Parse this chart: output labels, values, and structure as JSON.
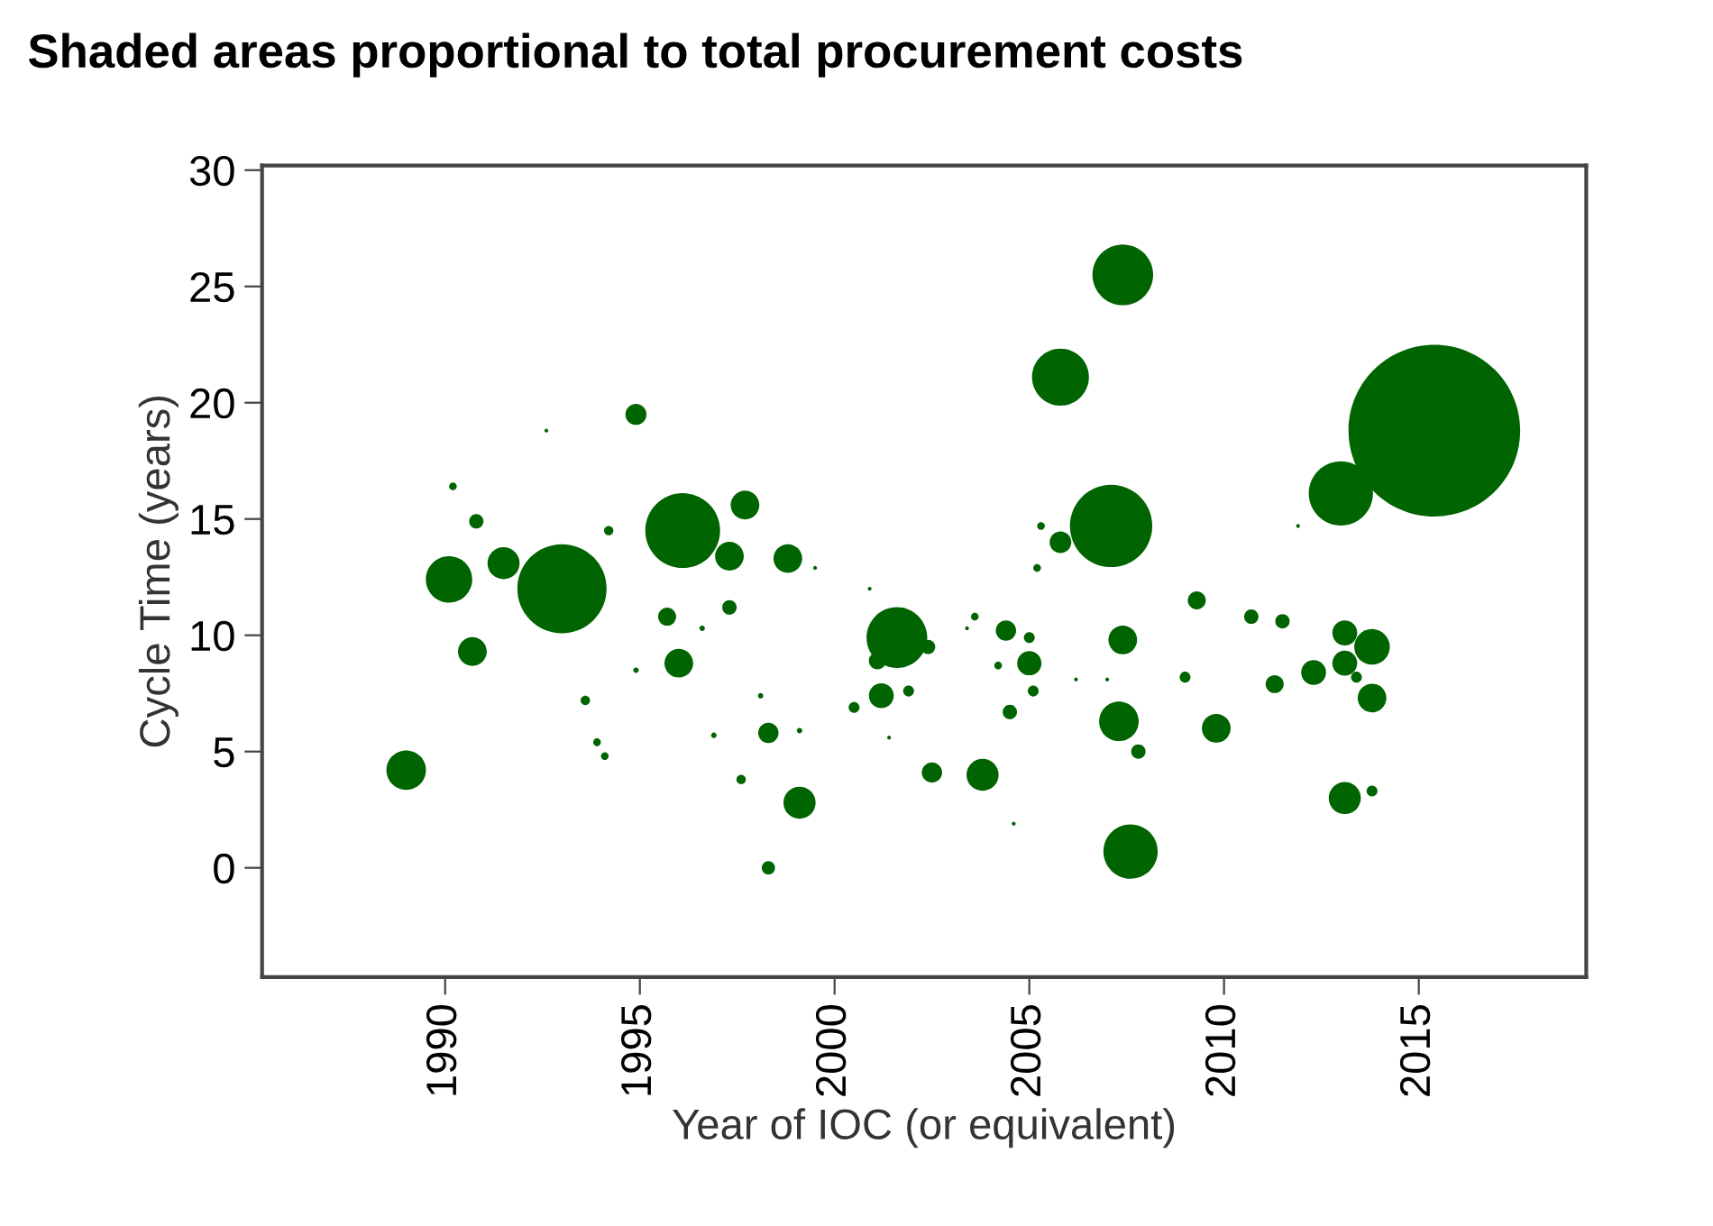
{
  "chart_data": {
    "type": "bubble",
    "title": "Shaded areas proportional to total procurement costs",
    "xlabel": "Year of IOC (or equivalent)",
    "ylabel": "Cycle Time (years)",
    "xlim": [
      1985.3,
      2019.3
    ],
    "ylim": [
      -4.7,
      30.2
    ],
    "xticks": [
      1990,
      1995,
      2000,
      2005,
      2010,
      2015
    ],
    "yticks": [
      0,
      5,
      10,
      15,
      20,
      25,
      30
    ],
    "grid": false,
    "legend": false,
    "marker": "circle",
    "series": [
      {
        "color": "#006400",
        "x": [
          1989.0,
          1990.1,
          1990.7,
          1990.2,
          1990.8,
          1991.5,
          1993.0,
          1992.6,
          1994.2,
          1994.9,
          1996.1,
          1997.3,
          1997.7,
          1998.8,
          1995.7,
          1997.3,
          1996.6,
          1996.0,
          1994.9,
          1993.6,
          1993.9,
          1994.1,
          1998.1,
          1996.9,
          1998.3,
          1999.1,
          1997.6,
          1999.1,
          1998.3,
          2001.6,
          2002.4,
          2001.1,
          2001.2,
          2001.9,
          2000.5,
          2000.9,
          2001.4,
          2002.5,
          1999.5,
          2003.6,
          2003.4,
          2004.4,
          2005.0,
          2004.2,
          2005.0,
          2005.1,
          2006.2,
          2007.0,
          2004.5,
          2003.8,
          2004.6,
          2007.4,
          2007.3,
          2007.8,
          2007.6,
          2005.2,
          2009.3,
          2009.0,
          2009.8,
          2010.7,
          2011.5,
          2011.3,
          2012.3,
          2013.1,
          2013.1,
          2013.8,
          2013.4,
          2013.8,
          2013.1,
          2013.8,
          2007.4,
          2005.8,
          2007.1,
          2005.8,
          2005.3,
          2013.0,
          2015.4,
          2011.9
        ],
        "values": [
          4.2,
          12.4,
          9.3,
          16.4,
          14.9,
          13.1,
          12.0,
          18.8,
          14.5,
          19.5,
          14.5,
          13.4,
          15.6,
          13.3,
          10.8,
          11.2,
          10.3,
          8.8,
          8.5,
          7.2,
          5.4,
          4.8,
          7.4,
          5.7,
          5.8,
          5.9,
          3.8,
          2.8,
          0.0,
          9.9,
          9.5,
          8.9,
          7.4,
          7.6,
          6.9,
          12.0,
          5.6,
          4.1,
          12.9,
          10.8,
          10.3,
          10.2,
          9.9,
          8.7,
          8.8,
          7.6,
          8.1,
          8.1,
          6.7,
          4.0,
          1.9,
          9.8,
          6.3,
          5.0,
          0.7,
          12.9,
          11.5,
          8.2,
          6.0,
          10.8,
          10.6,
          7.9,
          8.4,
          10.1,
          8.8,
          9.5,
          8.2,
          7.3,
          3.0,
          3.3,
          25.5,
          21.1,
          14.7,
          14.0,
          14.7,
          16.1,
          18.8,
          14.7
        ],
        "sizes": [
          0.053,
          0.073,
          0.028,
          0.002,
          0.007,
          0.035,
          0.27,
          0.0005,
          0.003,
          0.015,
          0.19,
          0.028,
          0.028,
          0.028,
          0.011,
          0.007,
          0.001,
          0.028,
          0.001,
          0.003,
          0.002,
          0.002,
          0.001,
          0.001,
          0.014,
          0.001,
          0.003,
          0.035,
          0.006,
          0.125,
          0.007,
          0.01,
          0.021,
          0.004,
          0.004,
          0.0005,
          0.0005,
          0.014,
          0.0005,
          0.002,
          0.0005,
          0.014,
          0.004,
          0.002,
          0.02,
          0.004,
          0.0005,
          0.0005,
          0.007,
          0.035,
          0.0005,
          0.028,
          0.053,
          0.007,
          0.1,
          0.002,
          0.011,
          0.004,
          0.028,
          0.007,
          0.007,
          0.011,
          0.021,
          0.021,
          0.021,
          0.043,
          0.004,
          0.028,
          0.035,
          0.004,
          0.125,
          0.11,
          0.23,
          0.016,
          0.002,
          0.14,
          1,
          0.0005
        ]
      }
    ]
  }
}
